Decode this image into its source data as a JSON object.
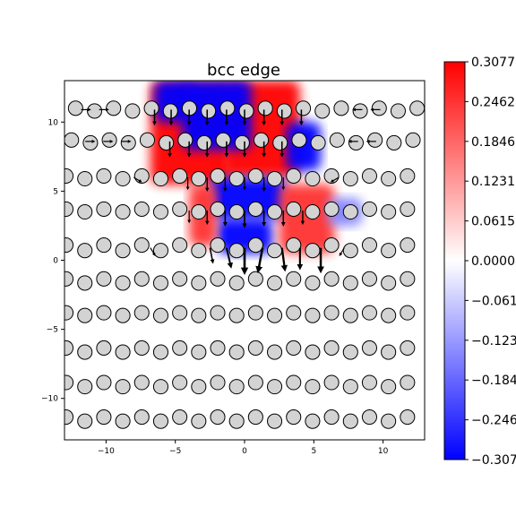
{
  "chart_data": {
    "type": "heatmap",
    "title": "bcc edge",
    "xlabel": "",
    "ylabel": "",
    "xlim": [
      -13,
      13
    ],
    "ylim": [
      -13,
      13
    ],
    "x_ticks": [
      -10,
      -5,
      0,
      5,
      10
    ],
    "x_tick_labels": [
      "−10",
      "−5",
      "0",
      "5",
      "10"
    ],
    "y_ticks": [
      -10,
      -5,
      0,
      5,
      10
    ],
    "y_tick_labels": [
      "−10",
      "−5",
      "0",
      "5",
      "10"
    ],
    "colormap": "bwr",
    "colorbar": {
      "min": -0.3077,
      "max": 0.3077,
      "ticks": [
        0.3077,
        0.2462,
        0.1846,
        0.1231,
        0.0615,
        0.0,
        -0.0615,
        -0.1231,
        -0.1846,
        -0.2462,
        -0.3077
      ],
      "tick_labels": [
        "0.3077",
        "0.2462",
        "0.1846",
        "0.1231",
        "0.0615",
        "0.0000",
        "−0.0615",
        "−0.1231",
        "−0.1846",
        "−0.2462",
        "−0.3077"
      ]
    },
    "colors": {
      "positive": "#ff0000",
      "zero": "#ffffff",
      "negative": "#0000ff",
      "atom_fill": "#d3d3d3",
      "atom_edge": "#000000"
    },
    "atom_rows": [
      {
        "y": 10.9,
        "x_start": -12.2,
        "x_end": 12.5,
        "step": 1.37,
        "alt": 0.1
      },
      {
        "y": 8.6,
        "x_start": -12.5,
        "x_end": 12.8,
        "step": 1.37,
        "alt": 0.1
      },
      {
        "y": 6.0,
        "x_start": -12.9,
        "x_end": 12.8,
        "step": 1.37,
        "alt": 0.1
      },
      {
        "y": 3.6,
        "x_start": -12.9,
        "x_end": 12.8,
        "step": 1.37,
        "alt": 0.1
      },
      {
        "y": 0.9,
        "x_start": -12.9,
        "x_end": 12.8,
        "step": 1.37,
        "alt": 0.2
      },
      {
        "y": -1.5,
        "x_start": -12.9,
        "x_end": 12.8,
        "step": 1.37,
        "alt": 0.15
      },
      {
        "y": -3.9,
        "x_start": -12.9,
        "x_end": 12.8,
        "step": 1.37,
        "alt": 0.1
      },
      {
        "y": -6.5,
        "x_start": -12.9,
        "x_end": 12.8,
        "step": 1.37,
        "alt": 0.15
      },
      {
        "y": -9.0,
        "x_start": -12.9,
        "x_end": 12.8,
        "step": 1.37,
        "alt": 0.15
      },
      {
        "y": -11.5,
        "x_start": -12.9,
        "x_end": 12.8,
        "step": 1.37,
        "alt": 0.15
      }
    ],
    "field_regions": [
      {
        "x0": -6.8,
        "x1": -1.0,
        "y0": 5.5,
        "y1": 13.0,
        "value": 0.3077
      },
      {
        "x0": -1.5,
        "x1": 4.0,
        "y0": 6.0,
        "y1": 13.0,
        "value": 0.3077
      },
      {
        "x0": -6.5,
        "x1": -3.8,
        "y0": 10.0,
        "y1": 13.0,
        "value": -0.3077
      },
      {
        "x0": -4.5,
        "x1": 0.5,
        "y0": 8.0,
        "y1": 13.0,
        "value": -0.3077
      },
      {
        "x0": 3.0,
        "x1": 5.5,
        "y0": 6.5,
        "y1": 10.0,
        "value": -0.3077
      },
      {
        "x0": -2.5,
        "x1": 3.0,
        "y0": 3.0,
        "y1": 6.0,
        "value": -0.3077
      },
      {
        "x0": -2.0,
        "x1": 2.0,
        "y0": 0.5,
        "y1": 3.0,
        "value": -0.3077
      },
      {
        "x0": -4.0,
        "x1": -2.0,
        "y0": 1.0,
        "y1": 5.5,
        "value": 0.25
      },
      {
        "x0": 2.5,
        "x1": 6.5,
        "y0": 0.5,
        "y1": 5.5,
        "value": 0.25
      },
      {
        "x0": 6.0,
        "x1": 8.5,
        "y0": 2.5,
        "y1": 4.5,
        "value": -0.15
      }
    ],
    "displacement_arrows": [
      {
        "x": 0.0,
        "y": 0.9,
        "dx": 0.0,
        "dy": -1.7
      },
      {
        "x": 1.3,
        "y": 0.9,
        "dx": -0.3,
        "dy": -1.6
      },
      {
        "x": 2.7,
        "y": 0.9,
        "dx": 0.2,
        "dy": -1.5
      },
      {
        "x": 4.0,
        "y": 0.9,
        "dx": 0.0,
        "dy": -1.4
      },
      {
        "x": 5.5,
        "y": 0.9,
        "dx": 0.0,
        "dy": -1.6
      },
      {
        "x": -1.3,
        "y": 0.9,
        "dx": 0.3,
        "dy": -1.3
      },
      {
        "x": -2.5,
        "y": 0.9,
        "dx": 0.2,
        "dy": -1.0
      },
      {
        "x": 0.0,
        "y": 3.6,
        "dx": 0.0,
        "dy": -1.1
      },
      {
        "x": 1.4,
        "y": 3.6,
        "dx": 0.0,
        "dy": -1.0
      },
      {
        "x": 2.8,
        "y": 3.6,
        "dx": 0.0,
        "dy": -1.0
      },
      {
        "x": -1.4,
        "y": 3.6,
        "dx": 0.0,
        "dy": -1.0
      },
      {
        "x": -2.7,
        "y": 3.6,
        "dx": 0.0,
        "dy": -0.9
      },
      {
        "x": 4.2,
        "y": 3.6,
        "dx": 0.0,
        "dy": -0.9
      },
      {
        "x": -4.0,
        "y": 3.6,
        "dx": 0.0,
        "dy": -0.8
      },
      {
        "x": 0.0,
        "y": 6.0,
        "dx": 0.0,
        "dy": -0.8
      },
      {
        "x": 1.4,
        "y": 6.0,
        "dx": 0.0,
        "dy": -0.9
      },
      {
        "x": -1.4,
        "y": 6.0,
        "dx": 0.0,
        "dy": -0.9
      },
      {
        "x": -2.7,
        "y": 6.0,
        "dx": 0.0,
        "dy": -0.9
      },
      {
        "x": -4.1,
        "y": 6.0,
        "dx": 0.0,
        "dy": -0.8
      },
      {
        "x": 2.8,
        "y": 6.0,
        "dx": 0.0,
        "dy": -0.8
      },
      {
        "x": -5.4,
        "y": 8.6,
        "dx": 0.0,
        "dy": -1.0
      },
      {
        "x": -4.0,
        "y": 8.6,
        "dx": 0.0,
        "dy": -1.0
      },
      {
        "x": -2.7,
        "y": 8.6,
        "dx": 0.0,
        "dy": -1.0
      },
      {
        "x": -1.3,
        "y": 8.6,
        "dx": 0.0,
        "dy": -1.0
      },
      {
        "x": 0.0,
        "y": 8.6,
        "dx": 0.0,
        "dy": -1.0
      },
      {
        "x": 1.4,
        "y": 8.6,
        "dx": 0.0,
        "dy": -1.0
      },
      {
        "x": 2.7,
        "y": 8.6,
        "dx": 0.0,
        "dy": -1.0
      },
      {
        "x": -6.5,
        "y": 10.9,
        "dx": 0.0,
        "dy": -1.0
      },
      {
        "x": -5.3,
        "y": 10.9,
        "dx": 0.0,
        "dy": -1.0
      },
      {
        "x": -4.0,
        "y": 10.9,
        "dx": 0.0,
        "dy": -1.0
      },
      {
        "x": -2.7,
        "y": 10.9,
        "dx": 0.0,
        "dy": -1.0
      },
      {
        "x": -1.3,
        "y": 10.9,
        "dx": 0.0,
        "dy": -1.0
      },
      {
        "x": 0.0,
        "y": 10.9,
        "dx": 0.0,
        "dy": -1.0
      },
      {
        "x": 1.4,
        "y": 10.9,
        "dx": 0.0,
        "dy": -1.0
      },
      {
        "x": 2.7,
        "y": 10.9,
        "dx": 0.0,
        "dy": -1.0
      },
      {
        "x": 4.1,
        "y": 10.9,
        "dx": 0.0,
        "dy": -1.0
      },
      {
        "x": -11.5,
        "y": 8.6,
        "dx": 0.6,
        "dy": 0.0
      },
      {
        "x": -10.2,
        "y": 8.6,
        "dx": 0.6,
        "dy": 0.0
      },
      {
        "x": -8.9,
        "y": 8.6,
        "dx": 0.6,
        "dy": 0.0
      },
      {
        "x": 8.2,
        "y": 8.6,
        "dx": -0.6,
        "dy": 0.0
      },
      {
        "x": 9.5,
        "y": 8.6,
        "dx": -0.6,
        "dy": 0.0
      },
      {
        "x": -11.8,
        "y": 10.9,
        "dx": 0.6,
        "dy": 0.0
      },
      {
        "x": -10.5,
        "y": 10.9,
        "dx": 0.6,
        "dy": 0.0
      },
      {
        "x": 8.5,
        "y": 10.9,
        "dx": -0.6,
        "dy": 0.0
      },
      {
        "x": 9.8,
        "y": 10.9,
        "dx": -0.6,
        "dy": 0.0
      },
      {
        "x": -8.0,
        "y": 6.0,
        "dx": 0.5,
        "dy": -0.3
      },
      {
        "x": 6.8,
        "y": 6.0,
        "dx": -0.5,
        "dy": -0.3
      },
      {
        "x": -6.8,
        "y": 0.9,
        "dx": 0.3,
        "dy": -0.5
      },
      {
        "x": 7.2,
        "y": 0.9,
        "dx": -0.3,
        "dy": -0.5
      }
    ]
  }
}
